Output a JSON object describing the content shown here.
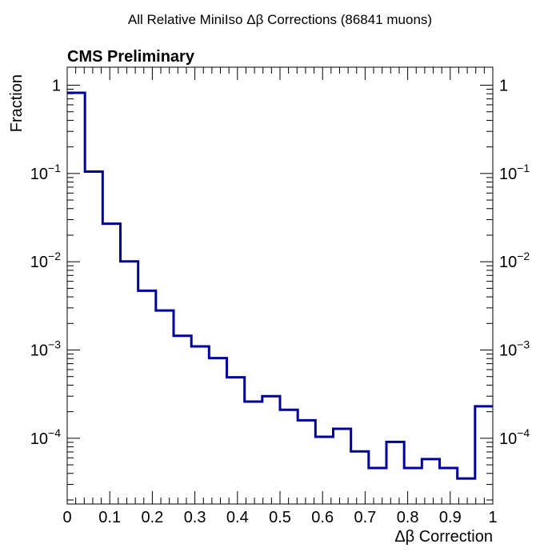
{
  "chart_data": {
    "type": "bar",
    "style": "step-histogram",
    "title": "All Relative MiniIso Δβ Corrections (86841 muons)",
    "label": "CMS Preliminary",
    "xlabel": "Δβ Correction",
    "ylabel": "Fraction",
    "xlim": [
      0,
      1
    ],
    "ylim": [
      1.8e-05,
      1.6
    ],
    "log_y": true,
    "grid": false,
    "line_color": "#000099",
    "bin_edges": [
      0,
      0.0417,
      0.0833,
      0.125,
      0.1667,
      0.2083,
      0.25,
      0.2917,
      0.3333,
      0.375,
      0.4167,
      0.4583,
      0.5,
      0.5417,
      0.5833,
      0.625,
      0.6667,
      0.7083,
      0.75,
      0.7917,
      0.8333,
      0.875,
      0.9167,
      0.9583,
      1
    ],
    "values": [
      0.82,
      0.105,
      0.027,
      0.0101,
      0.0047,
      0.0028,
      0.00145,
      0.0011,
      0.00081,
      0.00049,
      0.00026,
      0.0003,
      0.00021,
      0.00016,
      0.000104,
      0.000128,
      7.1e-05,
      4.6e-05,
      9.1e-05,
      4.6e-05,
      5.8e-05,
      4.6e-05,
      3.5e-05,
      0.00023
    ],
    "x_tick_labels": [
      "0",
      "0.1",
      "0.2",
      "0.3",
      "0.4",
      "0.5",
      "0.6",
      "0.7",
      "0.8",
      "0.9",
      "1"
    ],
    "y_ticks": [
      {
        "value": 1,
        "base": "1",
        "exp": ""
      },
      {
        "value": 0.1,
        "base": "10",
        "exp": "−1"
      },
      {
        "value": 0.01,
        "base": "10",
        "exp": "−2"
      },
      {
        "value": 0.001,
        "base": "10",
        "exp": "−3"
      },
      {
        "value": 0.0001,
        "base": "10",
        "exp": "−4"
      }
    ]
  }
}
